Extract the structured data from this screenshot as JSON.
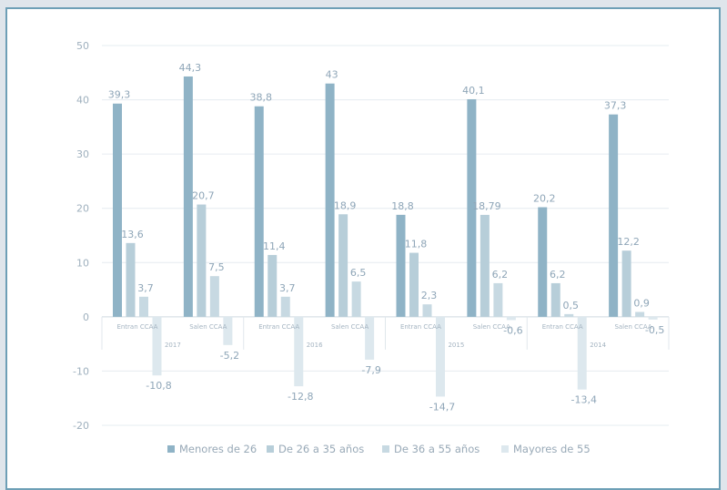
{
  "chart_data": {
    "type": "bar",
    "y_ticks": [
      "50",
      "40",
      "30",
      "20",
      "10",
      "0",
      "-10",
      "-20"
    ],
    "ylim": [
      -20,
      50
    ],
    "grid": true,
    "legend_position": "bottom",
    "groups": [
      {
        "category": "Entran CCAA",
        "year": "2017"
      },
      {
        "category": "Salen CCAA",
        "year": ""
      },
      {
        "category": "Entran CCAA",
        "year": "2016"
      },
      {
        "category": "Salen CCAA",
        "year": ""
      },
      {
        "category": "Entran CCAA",
        "year": "2015"
      },
      {
        "category": "Salen CCAA",
        "year": ""
      },
      {
        "category": "Entran CCAA",
        "year": "2014"
      },
      {
        "category": "Salen CCAA",
        "year": ""
      }
    ],
    "series": [
      {
        "name": "Menores de 26",
        "color": "#8fb3c6",
        "values": [
          39.3,
          44.3,
          38.8,
          43,
          18.8,
          40.1,
          20.2,
          37.3
        ],
        "labels": [
          "39,3",
          "44,3",
          "38,8",
          "43",
          "18,8",
          "40,1",
          "20,2",
          "37,3"
        ]
      },
      {
        "name": "De 26 a 35 años",
        "color": "#b7ced9",
        "values": [
          13.6,
          20.7,
          11.4,
          18.9,
          11.8,
          18.79,
          6.2,
          12.2
        ],
        "labels": [
          "13,6",
          "20,7",
          "11,4",
          "18,9",
          "11,8",
          "18,79",
          "6,2",
          "12,2"
        ]
      },
      {
        "name": "De 36 a 55 años",
        "color": "#c7d9e2",
        "values": [
          3.7,
          7.5,
          3.7,
          6.5,
          2.3,
          6.2,
          0.5,
          0.9
        ],
        "labels": [
          "3,7",
          "7,5",
          "3,7",
          "6,5",
          "2,3",
          "6,2",
          "0,5",
          "0,9"
        ]
      },
      {
        "name": "Mayores de 55",
        "color": "#dde8ee",
        "values": [
          -10.8,
          -5.2,
          -12.8,
          -7.9,
          -14.7,
          -0.6,
          -13.4,
          -0.5
        ],
        "labels": [
          "-10,8",
          "-5,2",
          "-12,8",
          "-7,9",
          "-14,7",
          "-0,6",
          "-13,4",
          "-0,5"
        ]
      }
    ]
  }
}
